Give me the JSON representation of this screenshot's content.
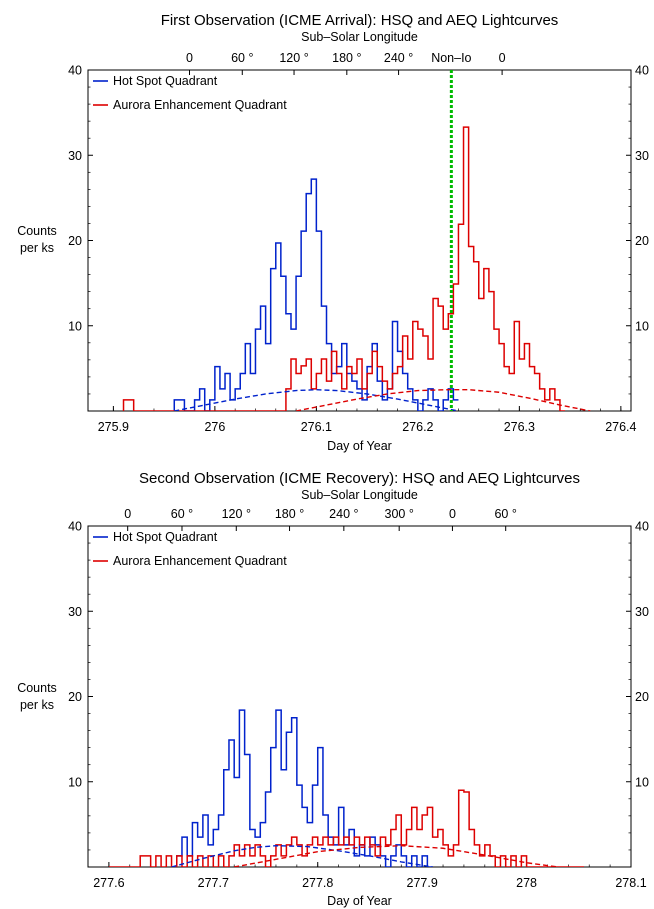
{
  "chart_data": [
    {
      "type": "line",
      "title": "First Observation (ICME Arrival): HSQ and AEQ Lightcurves",
      "top_axis_label": "Sub–Solar Longitude",
      "top_ticks": [
        {
          "x": 275.975,
          "label": "0"
        },
        {
          "x": 276.027,
          "label": "60 °"
        },
        {
          "x": 276.078,
          "label": "120 °"
        },
        {
          "x": 276.13,
          "label": "180 °"
        },
        {
          "x": 276.181,
          "label": "240 °"
        },
        {
          "x": 276.283,
          "label": "0"
        }
      ],
      "marker": {
        "x": 276.233,
        "label": "Non–Io",
        "color": "#00bb00"
      },
      "xlabel": "Day of Year",
      "ylabel": "Counts\nper ks",
      "xlim": [
        275.875,
        276.41
      ],
      "ylim": [
        0,
        40
      ],
      "xticks": [
        275.9,
        276.0,
        276.1,
        276.2,
        276.3,
        276.4
      ],
      "xtick_labels": [
        "275.9",
        "276",
        "276.1",
        "276.2",
        "276.3",
        "276.4"
      ],
      "yticks": [
        10,
        20,
        30,
        40
      ],
      "ytick_labels": [
        "10",
        "20",
        "30",
        "40"
      ],
      "legend_position": "top-left",
      "series": [
        {
          "name": "Hot Spot Quadrant",
          "color": "#0022cc",
          "style": "step",
          "x": [
            275.96,
            275.965,
            275.97,
            275.975,
            275.98,
            275.985,
            275.99,
            275.995,
            276.0,
            276.005,
            276.01,
            276.015,
            276.02,
            276.025,
            276.03,
            276.035,
            276.04,
            276.045,
            276.05,
            276.055,
            276.06,
            276.065,
            276.07,
            276.075,
            276.08,
            276.085,
            276.09,
            276.095,
            276.1,
            276.105,
            276.11,
            276.115,
            276.12,
            276.125,
            276.13,
            276.135,
            276.14,
            276.145,
            276.15,
            276.155,
            276.16,
            276.165,
            276.17,
            276.175,
            276.18,
            276.185,
            276.19,
            276.195,
            276.2,
            276.205,
            276.21,
            276.215,
            276.22,
            276.225,
            276.23,
            276.235
          ],
          "y": [
            1.3,
            1.3,
            0,
            0,
            1.3,
            2.6,
            0,
            1.3,
            5.2,
            2.6,
            4.4,
            1.3,
            2.6,
            4.4,
            7.9,
            4.4,
            9.6,
            12.3,
            7.9,
            16.7,
            19.7,
            15.8,
            11.4,
            9.6,
            15.8,
            21.1,
            25.5,
            27.2,
            21.1,
            12.3,
            7.9,
            4.4,
            5.2,
            7.9,
            4.4,
            3.5,
            2.6,
            1.3,
            5.2,
            7.9,
            3.5,
            1.3,
            2.6,
            10.5,
            7.0,
            4.4,
            2.6,
            1.3,
            0,
            1.3,
            2.6,
            1.3,
            0,
            1.3,
            2.6,
            1.3
          ]
        },
        {
          "name": "Aurora Enhancement Quadrant",
          "color": "#dd0000",
          "style": "step",
          "x": [
            275.91,
            275.915,
            275.92,
            276.07,
            276.075,
            276.08,
            276.085,
            276.09,
            276.095,
            276.1,
            276.105,
            276.11,
            276.115,
            276.12,
            276.125,
            276.13,
            276.135,
            276.14,
            276.145,
            276.15,
            276.155,
            276.16,
            276.165,
            276.17,
            276.175,
            276.18,
            276.185,
            276.19,
            276.195,
            276.2,
            276.205,
            276.21,
            276.215,
            276.22,
            276.225,
            276.23,
            276.235,
            276.24,
            276.245,
            276.25,
            276.255,
            276.26,
            276.265,
            276.27,
            276.275,
            276.28,
            276.285,
            276.29,
            276.295,
            276.3,
            276.305,
            276.31,
            276.315,
            276.32,
            276.325,
            276.33,
            276.335,
            276.34
          ],
          "y": [
            1.3,
            1.3,
            0,
            2.6,
            6.1,
            4.4,
            5.3,
            6.1,
            2.6,
            4.4,
            6.1,
            3.5,
            7.0,
            4.4,
            2.6,
            5.2,
            4.4,
            6.1,
            2.6,
            4.4,
            7.0,
            5.2,
            3.5,
            2.6,
            4.4,
            5.2,
            8.8,
            6.1,
            10.5,
            9.6,
            8.8,
            6.1,
            13.2,
            12.3,
            9.6,
            11.4,
            14.9,
            21.9,
            33.3,
            19.3,
            17.5,
            13.2,
            16.7,
            14.0,
            9.6,
            7.9,
            5.2,
            4.4,
            10.5,
            6.1,
            7.9,
            5.2,
            4.4,
            2.6,
            1.3,
            2.6,
            1.3,
            0
          ]
        },
        {
          "name": "",
          "color": "#0022cc",
          "style": "dashed",
          "x": [
            275.96,
            275.99,
            276.02,
            276.05,
            276.08,
            276.1,
            276.12,
            276.15,
            276.18,
            276.21,
            276.24
          ],
          "y": [
            0,
            0.7,
            1.4,
            2.0,
            2.4,
            2.5,
            2.4,
            2.0,
            1.4,
            0.7,
            0
          ]
        },
        {
          "name": "",
          "color": "#dd0000",
          "style": "dashed",
          "x": [
            276.08,
            276.11,
            276.14,
            276.17,
            276.2,
            276.23,
            276.25,
            276.28,
            276.31,
            276.34,
            276.37
          ],
          "y": [
            0,
            0.7,
            1.4,
            2.0,
            2.4,
            2.5,
            2.5,
            2.2,
            1.5,
            0.7,
            0
          ]
        }
      ]
    },
    {
      "type": "line",
      "title": "Second Observation (ICME Recovery): HSQ and AEQ Lightcurves",
      "top_axis_label": "Sub–Solar Longitude",
      "top_ticks": [
        {
          "x": 277.618,
          "label": "0"
        },
        {
          "x": 277.67,
          "label": "60 °"
        },
        {
          "x": 277.722,
          "label": "120 °"
        },
        {
          "x": 277.773,
          "label": "180 °"
        },
        {
          "x": 277.825,
          "label": "240 °"
        },
        {
          "x": 277.878,
          "label": "300 °"
        },
        {
          "x": 277.929,
          "label": "0"
        },
        {
          "x": 277.98,
          "label": "60 °"
        }
      ],
      "xlabel": "Day of Year",
      "ylabel": "Counts\nper ks",
      "xlim": [
        277.58,
        278.1
      ],
      "ylim": [
        0,
        40
      ],
      "xticks": [
        277.6,
        277.7,
        277.8,
        277.9,
        278.0,
        278.1
      ],
      "xtick_labels": [
        "277.6",
        "277.7",
        "277.8",
        "277.9",
        "278",
        "278.1"
      ],
      "yticks": [
        10,
        20,
        30,
        40
      ],
      "ytick_labels": [
        "10",
        "20",
        "30",
        "40"
      ],
      "legend_position": "top-left",
      "series": [
        {
          "name": "Hot Spot Quadrant",
          "color": "#0022cc",
          "style": "step",
          "x": [
            277.665,
            277.67,
            277.675,
            277.68,
            277.685,
            277.69,
            277.695,
            277.7,
            277.705,
            277.71,
            277.715,
            277.72,
            277.725,
            277.73,
            277.735,
            277.74,
            277.745,
            277.75,
            277.755,
            277.76,
            277.765,
            277.77,
            277.775,
            277.78,
            277.785,
            277.79,
            277.795,
            277.8,
            277.805,
            277.81,
            277.815,
            277.82,
            277.825,
            277.83,
            277.835,
            277.84,
            277.845,
            277.85,
            277.855,
            277.86,
            277.865,
            277.87,
            277.875,
            277.88,
            277.885,
            277.89,
            277.895,
            277.9,
            277.905
          ],
          "y": [
            1.3,
            3.5,
            1.3,
            5.2,
            3.5,
            6.1,
            2.6,
            4.4,
            6.1,
            11.4,
            14.9,
            10.5,
            18.4,
            13.2,
            4.4,
            3.5,
            5.2,
            8.8,
            14.0,
            18.4,
            11.4,
            15.8,
            17.5,
            9.6,
            7.0,
            5.2,
            9.6,
            14.0,
            6.1,
            3.5,
            2.6,
            7.0,
            2.6,
            4.4,
            1.3,
            2.6,
            1.3,
            3.5,
            2.6,
            1.3,
            0,
            1.3,
            2.6,
            1.3,
            0,
            1.3,
            0,
            1.3,
            0
          ]
        },
        {
          "name": "Aurora Enhancement Quadrant",
          "color": "#dd0000",
          "style": "step",
          "x": [
            277.6,
            277.63,
            277.635,
            277.64,
            277.645,
            277.65,
            277.655,
            277.66,
            277.665,
            277.67,
            277.675,
            277.68,
            277.685,
            277.69,
            277.695,
            277.7,
            277.705,
            277.71,
            277.715,
            277.72,
            277.725,
            277.73,
            277.735,
            277.74,
            277.745,
            277.75,
            277.755,
            277.76,
            277.765,
            277.77,
            277.775,
            277.78,
            277.785,
            277.79,
            277.795,
            277.8,
            277.805,
            277.81,
            277.815,
            277.82,
            277.825,
            277.83,
            277.835,
            277.84,
            277.845,
            277.85,
            277.855,
            277.86,
            277.865,
            277.87,
            277.875,
            277.88,
            277.885,
            277.89,
            277.895,
            277.9,
            277.905,
            277.91,
            277.915,
            277.92,
            277.925,
            277.93,
            277.935,
            277.94,
            277.945,
            277.95,
            277.955,
            277.96,
            277.965,
            277.97,
            277.975,
            277.98,
            277.985,
            277.99,
            277.995,
            278.0,
            278.005,
            278.01,
            278.05
          ],
          "y": [
            0,
            1.3,
            1.3,
            0,
            1.3,
            0,
            1.3,
            0,
            1.3,
            0,
            1.3,
            0,
            1.3,
            0,
            1.3,
            0,
            1.3,
            0,
            1.3,
            2.6,
            1.3,
            2.6,
            1.3,
            2.6,
            1.3,
            0,
            1.3,
            2.6,
            1.3,
            2.6,
            3.5,
            2.6,
            1.3,
            2.6,
            3.5,
            2.6,
            3.5,
            2.6,
            3.5,
            2.6,
            3.5,
            2.6,
            3.5,
            2.6,
            3.5,
            2.6,
            1.3,
            3.5,
            2.6,
            4.4,
            6.1,
            2.6,
            4.4,
            7.0,
            4.4,
            6.1,
            7.0,
            3.5,
            4.4,
            2.6,
            1.3,
            2.6,
            9.0,
            8.8,
            4.4,
            2.6,
            1.3,
            2.6,
            1.3,
            0,
            1.3,
            0,
            1.3,
            0,
            1.3,
            0,
            0,
            0,
            0
          ]
        },
        {
          "name": "",
          "color": "#0022cc",
          "style": "dashed",
          "x": [
            277.66,
            277.69,
            277.72,
            277.74,
            277.76,
            277.79,
            277.82,
            277.85,
            277.88,
            277.91
          ],
          "y": [
            0,
            1.0,
            1.9,
            2.3,
            2.5,
            2.4,
            1.9,
            1.3,
            0.6,
            0
          ]
        },
        {
          "name": "",
          "color": "#dd0000",
          "style": "dashed",
          "x": [
            277.72,
            277.76,
            277.8,
            277.84,
            277.88,
            277.92,
            277.96,
            278.0,
            278.03
          ],
          "y": [
            0,
            0.9,
            1.8,
            2.3,
            2.5,
            2.2,
            1.4,
            0.5,
            0
          ]
        }
      ]
    }
  ]
}
